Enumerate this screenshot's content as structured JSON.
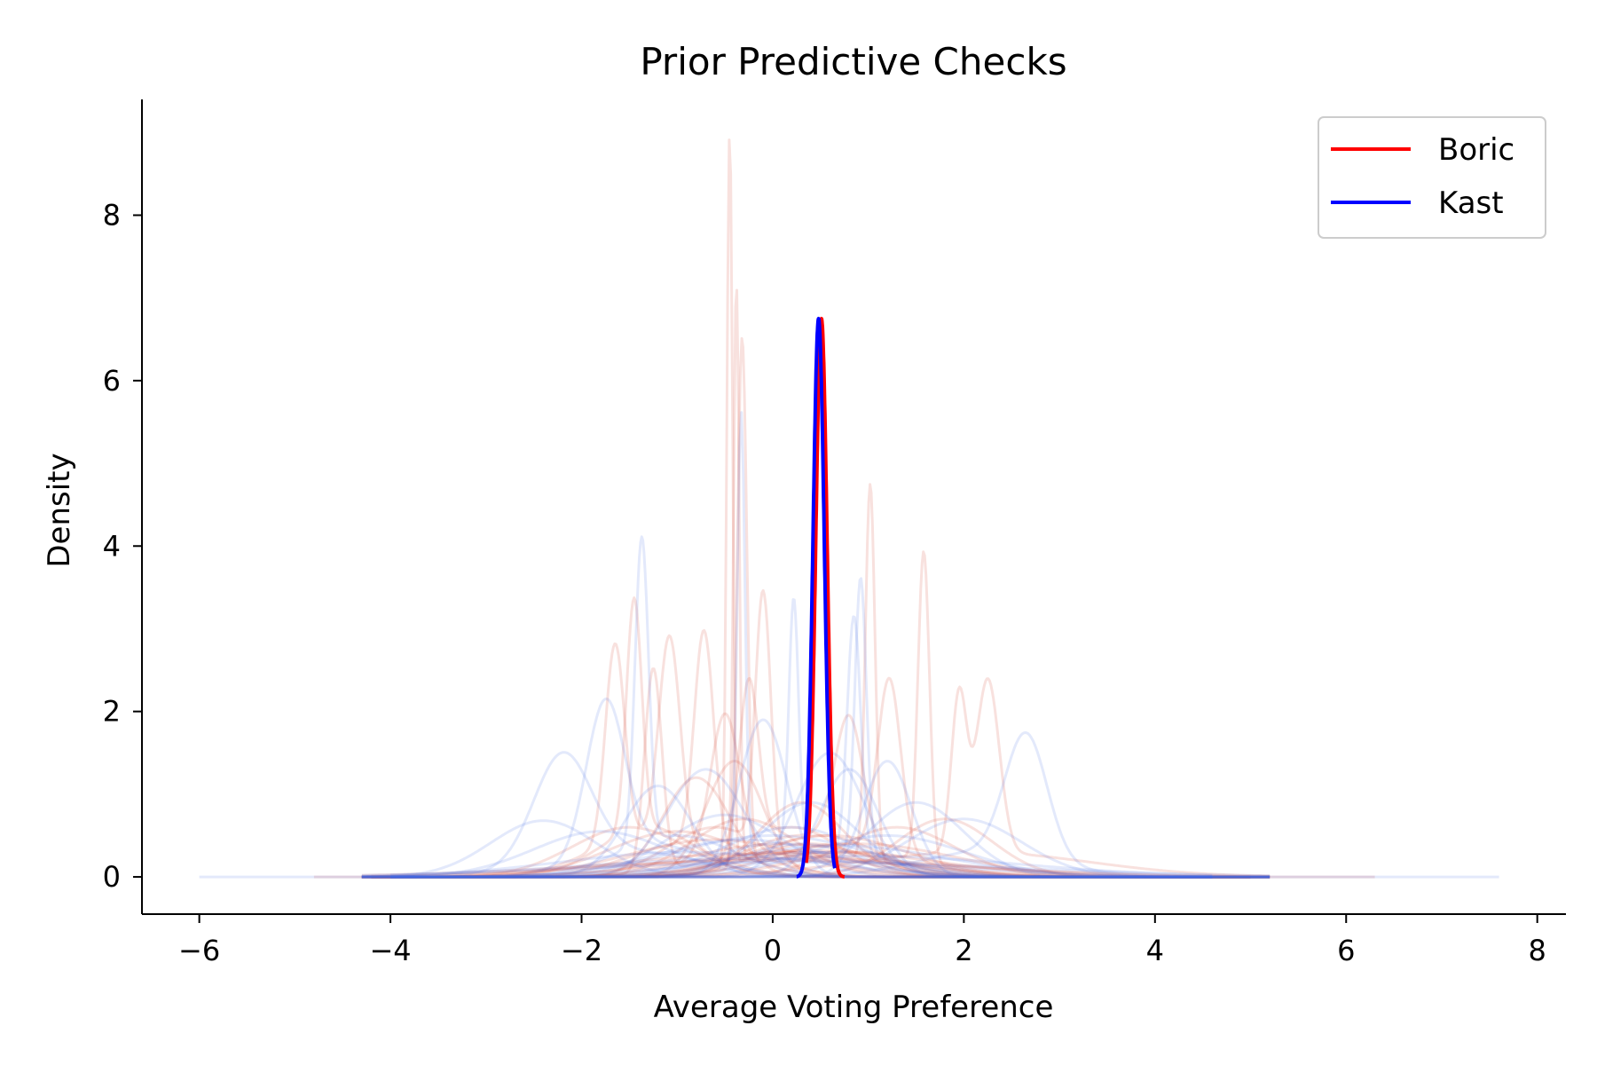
{
  "chart_data": {
    "type": "line",
    "title": "Prior Predictive Checks",
    "xlabel": "Average Voting Preference",
    "ylabel": "Density",
    "xlim": [
      -6.6,
      8.3
    ],
    "ylim": [
      -0.45,
      9.4
    ],
    "xticks": [
      -6,
      -4,
      -2,
      0,
      2,
      4,
      6,
      8
    ],
    "xtick_labels": [
      "−6",
      "−4",
      "−2",
      "0",
      "2",
      "4",
      "6",
      "8"
    ],
    "yticks": [
      0,
      2,
      4,
      6,
      8
    ],
    "ytick_labels": [
      "0",
      "2",
      "4",
      "6",
      "8"
    ],
    "grid": false,
    "legend_position": "top-right",
    "colors": {
      "boric": "#ff0000",
      "kast": "#0000ff",
      "boric_prior": "#d4503c",
      "kast_prior": "#4169e1"
    },
    "series": [
      {
        "name": "Boric",
        "color": "#ff0000",
        "mean": 0.51,
        "sd": 0.059,
        "peak": 6.75,
        "x_range": [
          0.35,
          0.75
        ]
      },
      {
        "name": "Kast",
        "color": "#0000ff",
        "mean": 0.48,
        "sd": 0.059,
        "peak": 6.75,
        "x_range": [
          0.25,
          0.65
        ]
      }
    ],
    "prior_samples_boric": [
      [
        [
          -0.45,
          0.03,
          8.9
        ],
        [
          0.5,
          0.6,
          0.5
        ]
      ],
      [
        [
          -0.38,
          0.03,
          7.0
        ],
        [
          0.4,
          0.6,
          0.4
        ]
      ],
      [
        [
          -0.32,
          0.05,
          6.4
        ],
        [
          0.6,
          0.7,
          0.3
        ]
      ],
      [
        [
          1.02,
          0.05,
          4.55
        ],
        [
          0.3,
          0.8,
          0.3
        ]
      ],
      [
        [
          1.58,
          0.06,
          3.75
        ],
        [
          0.9,
          0.7,
          0.3
        ]
      ],
      [
        [
          -0.1,
          0.08,
          3.1
        ],
        [
          -0.6,
          0.5,
          0.6
        ]
      ],
      [
        [
          -1.45,
          0.08,
          2.8
        ],
        [
          -1.3,
          0.5,
          0.6
        ]
      ],
      [
        [
          -1.25,
          0.09,
          2.45
        ],
        [
          0.1,
          0.8,
          0.3
        ]
      ],
      [
        [
          2.25,
          0.12,
          2.1
        ],
        [
          1.95,
          0.08,
          1.9
        ],
        [
          2.1,
          1.2,
          0.3
        ]
      ],
      [
        [
          -0.72,
          0.1,
          2.6
        ],
        [
          -0.9,
          0.6,
          0.4
        ]
      ],
      [
        [
          -1.08,
          0.11,
          2.45
        ],
        [
          -1.65,
          0.1,
          2.4
        ],
        [
          -1.3,
          0.6,
          0.5
        ]
      ],
      [
        [
          1.22,
          0.12,
          2.1
        ],
        [
          0.7,
          0.7,
          0.4
        ]
      ],
      [
        [
          -0.25,
          0.1,
          2.0
        ],
        [
          0.2,
          0.5,
          0.6
        ]
      ],
      [
        [
          -0.5,
          0.15,
          1.7
        ],
        [
          -0.2,
          0.7,
          0.3
        ]
      ],
      [
        [
          0.8,
          0.15,
          1.6
        ],
        [
          0.3,
          0.6,
          0.5
        ]
      ],
      [
        [
          -0.8,
          0.35,
          1.2
        ]
      ],
      [
        [
          0.3,
          0.45,
          0.9
        ]
      ],
      [
        [
          -0.3,
          0.55,
          0.7
        ]
      ],
      [
        [
          0.6,
          0.8,
          0.5
        ]
      ],
      [
        [
          -0.6,
          0.9,
          0.45
        ]
      ],
      [
        [
          0.1,
          1.0,
          0.4
        ]
      ],
      [
        [
          0.4,
          1.25,
          0.32
        ]
      ],
      [
        [
          -0.2,
          1.4,
          0.28
        ]
      ],
      [
        [
          0.9,
          1.0,
          0.4
        ]
      ],
      [
        [
          -1.0,
          0.7,
          0.55
        ]
      ],
      [
        [
          1.3,
          0.6,
          0.6
        ]
      ],
      [
        [
          -0.4,
          0.3,
          1.4
        ]
      ],
      [
        [
          0.2,
          1.7,
          0.23
        ]
      ],
      [
        [
          0.0,
          2.0,
          0.2
        ]
      ],
      [
        [
          1.8,
          0.5,
          0.7
        ]
      ],
      [
        [
          -1.5,
          0.6,
          0.6
        ]
      ]
    ],
    "prior_samples_kast": [
      [
        [
          -0.33,
          0.04,
          5.4
        ],
        [
          0.3,
          0.6,
          0.4
        ]
      ],
      [
        [
          -1.37,
          0.07,
          3.7
        ],
        [
          -1.0,
          0.6,
          0.5
        ]
      ],
      [
        [
          0.92,
          0.06,
          3.35
        ],
        [
          0.6,
          0.7,
          0.3
        ]
      ],
      [
        [
          0.22,
          0.05,
          3.0
        ],
        [
          0.0,
          0.6,
          0.4
        ]
      ],
      [
        [
          0.85,
          0.07,
          2.9
        ],
        [
          0.4,
          0.8,
          0.3
        ]
      ],
      [
        [
          2.65,
          0.22,
          1.5
        ],
        [
          2.2,
          0.7,
          0.3
        ]
      ],
      [
        [
          -1.75,
          0.2,
          1.85
        ],
        [
          -1.3,
          0.6,
          0.4
        ]
      ],
      [
        [
          -2.2,
          0.3,
          1.3
        ],
        [
          -1.5,
          0.8,
          0.3
        ]
      ],
      [
        [
          -2.4,
          0.55,
          0.68
        ]
      ],
      [
        [
          1.5,
          0.5,
          0.9
        ]
      ],
      [
        [
          -0.1,
          0.25,
          1.9
        ]
      ],
      [
        [
          0.6,
          0.35,
          1.5
        ]
      ],
      [
        [
          -0.7,
          0.4,
          1.3
        ]
      ],
      [
        [
          0.2,
          0.7,
          0.6
        ]
      ],
      [
        [
          -0.3,
          0.9,
          0.45
        ]
      ],
      [
        [
          0.7,
          1.1,
          0.38
        ]
      ],
      [
        [
          -0.9,
          1.3,
          0.3
        ]
      ],
      [
        [
          1.0,
          1.6,
          0.25
        ]
      ],
      [
        [
          0.0,
          1.0,
          0.5
        ]
      ],
      [
        [
          0.4,
          0.5,
          0.9
        ]
      ],
      [
        [
          -0.5,
          0.6,
          0.75
        ]
      ],
      [
        [
          2.0,
          0.6,
          0.7
        ]
      ],
      [
        [
          -1.8,
          0.7,
          0.55
        ]
      ],
      [
        [
          1.2,
          0.8,
          0.5
        ]
      ],
      [
        [
          0.3,
          2.2,
          0.18
        ]
      ],
      [
        [
          -0.2,
          1.8,
          0.22
        ]
      ],
      [
        [
          0.8,
          0.3,
          1.3
        ]
      ],
      [
        [
          -1.2,
          0.35,
          1.1
        ]
      ],
      [
        [
          1.2,
          0.25,
          1.4
        ]
      ]
    ],
    "prior_x_ranges": {
      "kast_widest": [
        -6.0,
        7.6
      ],
      "boric_widest": [
        -4.8,
        6.3
      ],
      "typical": [
        -4.3,
        5.2
      ]
    }
  },
  "legend": {
    "boric_label": "Boric",
    "kast_label": "Kast"
  }
}
